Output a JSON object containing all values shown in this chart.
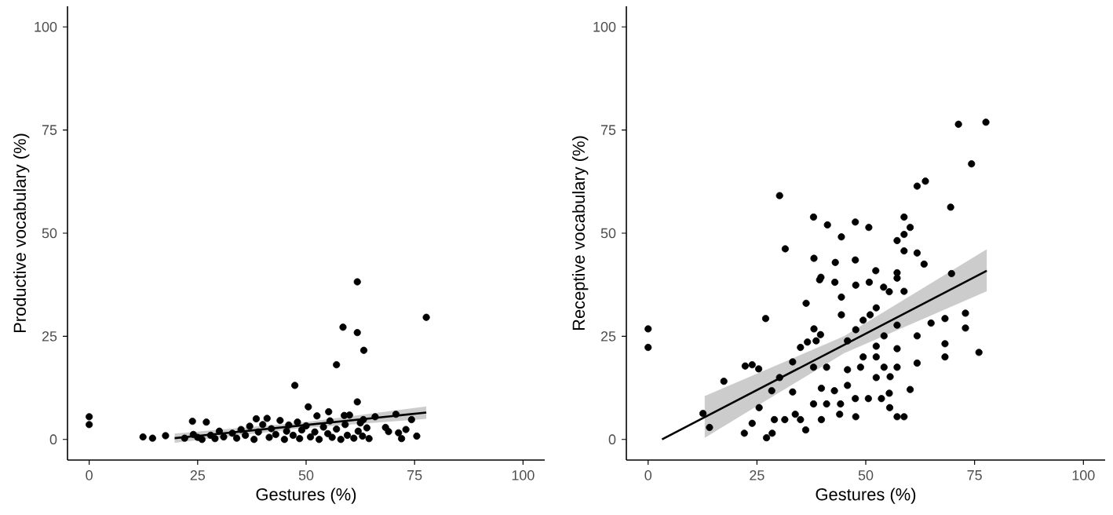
{
  "chart_data": [
    {
      "type": "scatter",
      "xlabel": "Gestures (%)",
      "ylabel": "Productive vocabulary (%)",
      "xlim": [
        -5,
        105
      ],
      "ylim": [
        -5,
        105
      ],
      "xticks": [
        0,
        25,
        50,
        75,
        100
      ],
      "yticks": [
        0,
        25,
        50,
        75,
        100
      ],
      "series": [
        {
          "marker": "circle",
          "color": "#000000",
          "x": [
            0,
            0,
            12.4,
            14.6,
            17.6,
            47.4,
            57,
            58.5,
            61.8,
            61.8,
            63.3,
            77.7,
            61.8,
            50.5,
            23.8,
            27,
            75.5,
            74.3,
            71.3,
            68.3,
            55.2,
            58.8,
            63.2,
            65.9,
            70.7,
            22,
            24,
            25,
            26,
            28,
            29,
            30,
            31,
            33,
            34,
            35,
            36,
            37,
            38,
            38.5,
            39,
            40,
            41,
            41.5,
            42,
            43,
            44,
            45,
            45.5,
            46,
            47,
            48,
            48.5,
            49,
            50,
            51,
            52,
            52.5,
            53,
            54,
            55,
            55.5,
            56,
            57,
            58,
            59,
            59.5,
            60,
            61,
            62,
            62.5,
            63,
            64,
            64.5,
            69,
            72,
            73
          ],
          "values": [
            5.5,
            3.6,
            0.6,
            0.3,
            0.9,
            13.1,
            18.1,
            27.2,
            38.2,
            25.9,
            21.6,
            29.6,
            9.1,
            7.9,
            4.4,
            4.2,
            0.8,
            4.8,
            1.6,
            2.9,
            6.7,
            5.8,
            4.8,
            5.5,
            6.1,
            0.3,
            1.2,
            0.5,
            0,
            1,
            0.2,
            2,
            0.6,
            1.5,
            0.3,
            2.4,
            1,
            3.2,
            0,
            5,
            1.8,
            3.6,
            5.1,
            0.5,
            2.6,
            1.2,
            4.6,
            0,
            2,
            3.5,
            1,
            4.2,
            0.2,
            2.3,
            3.3,
            0.6,
            1.8,
            5.7,
            0,
            3,
            1.4,
            4.5,
            0.5,
            2.5,
            0,
            3.6,
            1,
            5.9,
            0.3,
            2,
            4,
            0.8,
            2.8,
            0.2,
            1.9,
            0.2,
            2.4
          ]
        },
        {
          "type": "line",
          "marker": "none",
          "color": "#000000",
          "line_style": "solid",
          "x": [
            19.7,
            49,
            77.7
          ],
          "values": [
            0.3,
            3.4,
            6.5
          ],
          "lower": [
            -0.8,
            2.7,
            5
          ],
          "upper": [
            1.4,
            4.1,
            8
          ]
        }
      ]
    },
    {
      "type": "scatter",
      "xlabel": "Gestures (%)",
      "ylabel": "Receptive vocabulary (%)",
      "xlim": [
        -5,
        105
      ],
      "ylim": [
        -5,
        105
      ],
      "xticks": [
        0,
        25,
        50,
        75,
        100
      ],
      "yticks": [
        0,
        25,
        50,
        75,
        100
      ],
      "series": [
        {
          "marker": "circle",
          "color": "#000000",
          "x": [
            0,
            0,
            30.2,
            31.5,
            17.4,
            12.6,
            14.1,
            22.3,
            23.9,
            25.4,
            22.1,
            23.9,
            25.5,
            27,
            27.2,
            28.5,
            29,
            31.4,
            33.2,
            36.3,
            36.6,
            35,
            38,
            38.1,
            38.1,
            39.6,
            39.7,
            39.4,
            41.2,
            43,
            42.9,
            44.4,
            44.4,
            44.4,
            44.2,
            47.6,
            47.6,
            47.7,
            47.7,
            47.7,
            50.7,
            50.8,
            51,
            52.3,
            52.4,
            52.4,
            52.4,
            54.1,
            55.4,
            55.6,
            55.5,
            57.2,
            57.2,
            57.2,
            57.2,
            57.2,
            57.2,
            58.8,
            58.8,
            58.8,
            58.8,
            58.8,
            60.2,
            60.2,
            61.8,
            63.7,
            61.8,
            61.8,
            61.8,
            63.4,
            65,
            69.5,
            69.7,
            68.2,
            68.2,
            68.2,
            72.9,
            72.9,
            71.3,
            77.6,
            74.3,
            76,
            35,
            36.2,
            38,
            39.8,
            41,
            41,
            42.8,
            45.8,
            45.8,
            47.6,
            48.8,
            49.4,
            50.6,
            52.4,
            54.2,
            55.4,
            57.2,
            38,
            39.8,
            33.2,
            30.2,
            28.4,
            33.8,
            44,
            53.6,
            38.6,
            45.8,
            49.4,
            54.2
          ],
          "values": [
            26.8,
            22.3,
            59.1,
            46.2,
            14.1,
            6.3,
            2.9,
            17.8,
            18.1,
            17.1,
            1.5,
            3.9,
            7.7,
            29.3,
            0.4,
            1.5,
            4.8,
            4.8,
            11.5,
            33,
            23.6,
            22.3,
            53.9,
            43.9,
            26.8,
            25.4,
            39.3,
            38.7,
            52,
            42.9,
            38.1,
            49.1,
            34.5,
            30.2,
            8.6,
            52.7,
            43.5,
            37.4,
            26.6,
            5.5,
            51.4,
            38.1,
            30.2,
            40.9,
            31.9,
            22.6,
            20,
            36.9,
            35.8,
            15.2,
            7.7,
            48.2,
            40.4,
            39.1,
            27.7,
            22,
            5.5,
            53.9,
            49.7,
            45.7,
            35.9,
            5.5,
            51.4,
            12.1,
            61.4,
            62.6,
            45.2,
            25.1,
            18.5,
            42.5,
            28.2,
            56.3,
            40.2,
            29.3,
            23.2,
            20,
            30.6,
            27,
            76.4,
            76.9,
            66.8,
            21.1,
            4.8,
            2.3,
            8.6,
            4.8,
            8.6,
            17.5,
            11.8,
            16.9,
            13.1,
            9.9,
            17.5,
            20,
            9.9,
            15,
            17.5,
            11.2,
            17.5,
            17.5,
            12.4,
            18.8,
            15,
            11.8,
            6.1,
            6.1,
            9.9,
            23.9,
            23.9,
            28.9,
            25.1
          ]
        },
        {
          "type": "line",
          "marker": "none",
          "color": "#000000",
          "line_style": "solid",
          "x": [
            3.2,
            13,
            45,
            77.8
          ],
          "values": [
            0,
            5.4,
            22.9,
            40.9
          ],
          "lower": [
            null,
            0.4,
            20.9,
            35.9
          ],
          "upper": [
            null,
            10.5,
            25,
            46.1
          ]
        }
      ]
    }
  ]
}
